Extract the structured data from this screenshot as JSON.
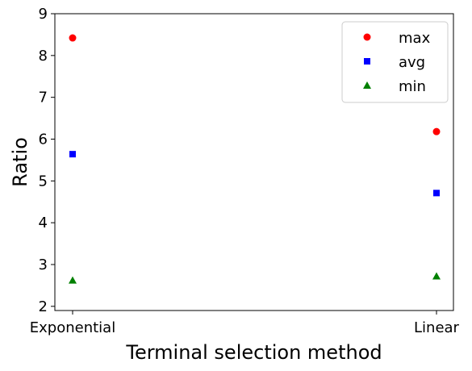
{
  "chart_data": {
    "type": "scatter",
    "title": "",
    "xlabel": "Terminal selection method",
    "ylabel": "Ratio",
    "categories": [
      "Exponential",
      "Linear"
    ],
    "ylim": [
      1.9,
      9.0
    ],
    "yticks": [
      2,
      3,
      4,
      5,
      6,
      7,
      8,
      9
    ],
    "grid": false,
    "legend_position": "top-right",
    "series": [
      {
        "name": "max",
        "marker": "circle",
        "color": "#ff0000",
        "values": [
          8.42,
          6.18
        ]
      },
      {
        "name": "avg",
        "marker": "square",
        "color": "#0000ff",
        "values": [
          5.64,
          4.71
        ]
      },
      {
        "name": "min",
        "marker": "triangle",
        "color": "#008000",
        "values": [
          2.62,
          2.72
        ]
      }
    ]
  }
}
